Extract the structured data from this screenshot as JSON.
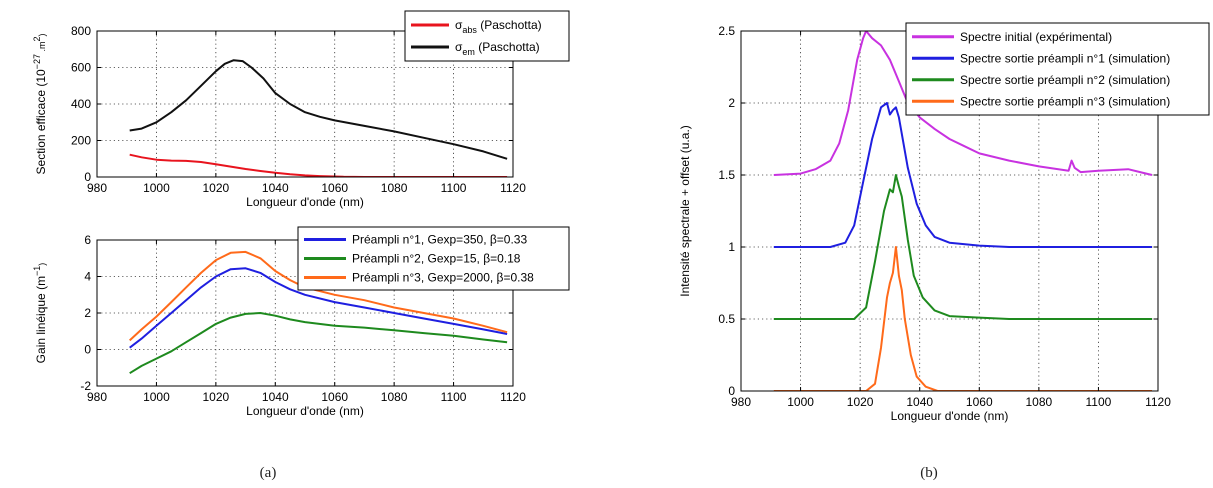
{
  "captions": {
    "a": "(a)",
    "b": "(b)"
  },
  "chart_data": [
    {
      "type": "line",
      "id": "a1",
      "xlabel": "Longueur d'onde (nm)",
      "ylabel": "Section efficace (10^-27 .m^2)",
      "ylabel_parts": {
        "main": "Section efficace (10",
        "sup1": "−27",
        "mid": " .m",
        "sup2": "2",
        "end": ")"
      },
      "xlim": [
        980,
        1120
      ],
      "ylim": [
        0,
        800
      ],
      "xticks": [
        980,
        1000,
        1020,
        1040,
        1060,
        1080,
        1100,
        1120
      ],
      "yticks": [
        0,
        200,
        400,
        600,
        800
      ],
      "grid": true,
      "legend_position": "top-right",
      "series": [
        {
          "name": "σabs (Paschotta)",
          "label_parts": {
            "sym": "σ",
            "sub": "abs",
            "rest": " (Paschotta)"
          },
          "color": "#e8141e",
          "x": [
            991,
            995,
            1000,
            1005,
            1010,
            1015,
            1020,
            1025,
            1030,
            1035,
            1040,
            1045,
            1050,
            1055,
            1060,
            1063,
            1070,
            1080,
            1090,
            1100,
            1110,
            1118
          ],
          "y": [
            122,
            108,
            95,
            90,
            88,
            82,
            70,
            57,
            44,
            33,
            23,
            15,
            9,
            5,
            3,
            1,
            0,
            0,
            0,
            0,
            0,
            0
          ]
        },
        {
          "name": "σem (Paschotta)",
          "label_parts": {
            "sym": "σ",
            "sub": "em",
            "rest": " (Paschotta)"
          },
          "color": "#111111",
          "x": [
            991,
            995,
            1000,
            1005,
            1010,
            1015,
            1020,
            1023,
            1026,
            1029,
            1032,
            1036,
            1040,
            1045,
            1050,
            1055,
            1060,
            1070,
            1080,
            1090,
            1100,
            1110,
            1118
          ],
          "y": [
            255,
            265,
            300,
            355,
            420,
            500,
            580,
            620,
            640,
            635,
            600,
            540,
            460,
            400,
            355,
            330,
            310,
            280,
            250,
            215,
            180,
            140,
            100
          ]
        }
      ]
    },
    {
      "type": "line",
      "id": "a2",
      "xlabel": "Longueur d'onde (nm)",
      "ylabel": "Gain linéique (m^-1)",
      "ylabel_parts": {
        "main": "Gain linéique (m",
        "sup1": "−1",
        "end": ")"
      },
      "xlim": [
        980,
        1120
      ],
      "ylim": [
        -2,
        6
      ],
      "xticks": [
        980,
        1000,
        1020,
        1040,
        1060,
        1080,
        1100,
        1120
      ],
      "yticks": [
        -2,
        0,
        2,
        4,
        6
      ],
      "grid": true,
      "legend_position": "top-right",
      "series": [
        {
          "name": "Préampli n°1, Gexp=350, β=0.33",
          "color": "#1f1fe0",
          "x": [
            991,
            995,
            1000,
            1005,
            1010,
            1015,
            1020,
            1025,
            1030,
            1035,
            1040,
            1045,
            1050,
            1060,
            1070,
            1080,
            1090,
            1100,
            1110,
            1118
          ],
          "y": [
            0.1,
            0.6,
            1.3,
            2.0,
            2.7,
            3.4,
            4.0,
            4.4,
            4.45,
            4.2,
            3.7,
            3.3,
            3.0,
            2.6,
            2.3,
            2.0,
            1.7,
            1.4,
            1.1,
            0.85
          ]
        },
        {
          "name": "Préampli n°2, Gexp=15, β=0.18",
          "color": "#1e8a1e",
          "x": [
            991,
            995,
            1000,
            1005,
            1010,
            1015,
            1020,
            1025,
            1030,
            1035,
            1040,
            1045,
            1050,
            1060,
            1070,
            1080,
            1090,
            1100,
            1110,
            1118
          ],
          "y": [
            -1.3,
            -0.9,
            -0.5,
            -0.1,
            0.4,
            0.9,
            1.4,
            1.75,
            1.95,
            2.0,
            1.85,
            1.65,
            1.5,
            1.3,
            1.2,
            1.05,
            0.9,
            0.75,
            0.55,
            0.4
          ]
        },
        {
          "name": "Préampli n°3, Gexp=2000, β=0.38",
          "color": "#ff6a1a",
          "x": [
            991,
            995,
            1000,
            1005,
            1010,
            1015,
            1020,
            1025,
            1030,
            1035,
            1040,
            1045,
            1050,
            1060,
            1070,
            1080,
            1090,
            1100,
            1110,
            1118
          ],
          "y": [
            0.5,
            1.1,
            1.8,
            2.6,
            3.4,
            4.2,
            4.9,
            5.3,
            5.35,
            5.0,
            4.3,
            3.8,
            3.4,
            3.0,
            2.7,
            2.3,
            2.0,
            1.7,
            1.3,
            0.95
          ]
        }
      ]
    },
    {
      "type": "line",
      "id": "b",
      "xlabel": "Longueur d'onde (nm)",
      "ylabel": "Intensité spectrale + offset (u.a.)",
      "xlim": [
        980,
        1120
      ],
      "ylim": [
        0,
        2.5
      ],
      "xticks": [
        980,
        1000,
        1020,
        1040,
        1060,
        1080,
        1100,
        1120
      ],
      "yticks": [
        0,
        0.5,
        1,
        1.5,
        2,
        2.5
      ],
      "grid": true,
      "legend_position": "top-right",
      "series": [
        {
          "name": "Spectre initial (expérimental)",
          "color": "#c832e0",
          "x": [
            991,
            1000,
            1005,
            1010,
            1013,
            1016,
            1019,
            1021,
            1022,
            1024,
            1027,
            1030,
            1033,
            1036,
            1040,
            1045,
            1050,
            1055,
            1060,
            1070,
            1080,
            1090,
            1091,
            1092,
            1094,
            1100,
            1110,
            1118
          ],
          "y": [
            1.5,
            1.51,
            1.54,
            1.6,
            1.72,
            1.95,
            2.3,
            2.45,
            2.5,
            2.45,
            2.4,
            2.3,
            2.15,
            2.0,
            1.9,
            1.82,
            1.75,
            1.7,
            1.65,
            1.6,
            1.56,
            1.53,
            1.6,
            1.55,
            1.52,
            1.53,
            1.54,
            1.5
          ]
        },
        {
          "name": "Spectre sortie préampli n°1 (simulation)",
          "color": "#1f1fe0",
          "x": [
            991,
            1010,
            1015,
            1018,
            1021,
            1024,
            1027,
            1029,
            1030,
            1031,
            1032,
            1033,
            1036,
            1039,
            1042,
            1045,
            1050,
            1060,
            1070,
            1090,
            1118
          ],
          "y": [
            1.0,
            1.0,
            1.03,
            1.15,
            1.45,
            1.75,
            1.97,
            2.0,
            1.92,
            1.95,
            1.97,
            1.9,
            1.55,
            1.3,
            1.15,
            1.07,
            1.03,
            1.01,
            1.0,
            1.0,
            1.0
          ]
        },
        {
          "name": "Spectre sortie préampli n°2 (simulation)",
          "color": "#1e8a1e",
          "x": [
            991,
            1018,
            1022,
            1025,
            1028,
            1030,
            1031,
            1032,
            1033,
            1034,
            1036,
            1038,
            1041,
            1045,
            1050,
            1060,
            1070,
            1118
          ],
          "y": [
            0.5,
            0.5,
            0.58,
            0.9,
            1.25,
            1.4,
            1.38,
            1.5,
            1.42,
            1.35,
            1.05,
            0.8,
            0.65,
            0.56,
            0.52,
            0.51,
            0.5,
            0.5
          ]
        },
        {
          "name": "Spectre sortie préampli n°3 (simulation)",
          "color": "#ff6a1a",
          "x": [
            991,
            1022,
            1025,
            1027,
            1029,
            1030,
            1031,
            1032,
            1033,
            1034,
            1035,
            1037,
            1039,
            1042,
            1046,
            1118
          ],
          "y": [
            0.0,
            0.0,
            0.05,
            0.3,
            0.65,
            0.75,
            0.82,
            1.0,
            0.8,
            0.7,
            0.5,
            0.25,
            0.1,
            0.03,
            0.0,
            0.0
          ]
        }
      ]
    }
  ]
}
